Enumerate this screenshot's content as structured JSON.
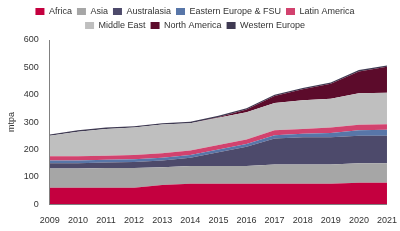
{
  "chart_data": {
    "type": "area",
    "stacked": true,
    "grid": false,
    "legend": "top",
    "y_label": "mtpa",
    "categories": [
      "2009",
      "2010",
      "2011",
      "2012",
      "2013",
      "2014",
      "2015",
      "2016",
      "2017",
      "2018",
      "2019",
      "2020",
      "2021"
    ],
    "ylim": [
      0,
      600
    ],
    "yticks": [
      0,
      100,
      200,
      300,
      400,
      500,
      600
    ],
    "series": [
      {
        "name": "Africa",
        "color": "#c4003f",
        "values": [
          60,
          60,
          60,
          60,
          70,
          75,
          75,
          75,
          75,
          75,
          75,
          78,
          78
        ]
      },
      {
        "name": "Asia",
        "color": "#a6a6a6",
        "values": [
          70,
          70,
          72,
          72,
          65,
          65,
          65,
          65,
          70,
          70,
          70,
          72,
          72
        ]
      },
      {
        "name": "Australasia",
        "color": "#4d4a6b",
        "values": [
          20,
          20,
          20,
          22,
          25,
          30,
          50,
          70,
          95,
          100,
          100,
          100,
          100
        ]
      },
      {
        "name": "Eastern Europe & FSU",
        "color": "#5876a8",
        "values": [
          10,
          10,
          10,
          10,
          10,
          10,
          10,
          10,
          12,
          12,
          15,
          20,
          22
        ]
      },
      {
        "name": "Latin America",
        "color": "#d2426e",
        "values": [
          15,
          15,
          15,
          16,
          16,
          16,
          16,
          16,
          18,
          18,
          20,
          20,
          20
        ]
      },
      {
        "name": "Middle East",
        "color": "#bfbfbf",
        "values": [
          75,
          90,
          98,
          100,
          105,
          100,
          100,
          100,
          100,
          105,
          105,
          115,
          115
        ]
      },
      {
        "name": "North America",
        "color": "#5c0b2b",
        "values": [
          0,
          0,
          0,
          0,
          0,
          0,
          2,
          10,
          25,
          40,
          55,
          80,
          95
        ]
      },
      {
        "name": "Western Europe",
        "color": "#3f3a52",
        "values": [
          5,
          5,
          5,
          5,
          5,
          5,
          5,
          5,
          5,
          5,
          5,
          5,
          5
        ]
      }
    ]
  }
}
